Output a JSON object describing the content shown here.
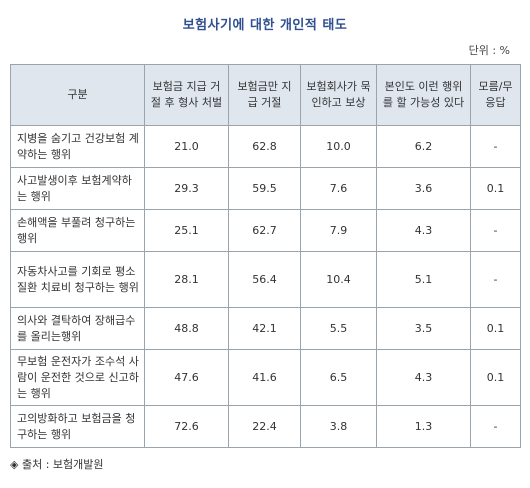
{
  "title": "보험사기에 대한 개인적 태도",
  "unit": "단위 : %",
  "table": {
    "headers": [
      "구분",
      "보험금 지급 거절 후 형사 처벌",
      "보험금만 지급 거절",
      "보험회사가 묵인하고 보상",
      "본인도 이런 행위를 할 가능성 있다",
      "모름/무응답"
    ],
    "rows": [
      {
        "label": "지병을 숨기고 건강보험 계약하는 행위",
        "values": [
          "21.0",
          "62.8",
          "10.0",
          "6.2",
          "-"
        ]
      },
      {
        "label": "사고발생이후 보험계약하는 행위",
        "values": [
          "29.3",
          "59.5",
          "7.6",
          "3.6",
          "0.1"
        ]
      },
      {
        "label": "손해액을 부풀려 청구하는 행위",
        "values": [
          "25.1",
          "62.7",
          "7.9",
          "4.3",
          "-"
        ]
      },
      {
        "label": "자동차사고를 기회로 평소 질환 치료비 청구하는 행위",
        "values": [
          "28.1",
          "56.4",
          "10.4",
          "5.1",
          "-"
        ]
      },
      {
        "label": "의사와 결탁하여 장해급수를 올리는행위",
        "values": [
          "48.8",
          "42.1",
          "5.5",
          "3.5",
          "0.1"
        ]
      },
      {
        "label": "무보험 운전자가 조수석 사람이 운전한 것으로 신고하는 행위",
        "values": [
          "47.6",
          "41.6",
          "6.5",
          "4.3",
          "0.1"
        ]
      },
      {
        "label": "고의방화하고 보험금을 청구하는 행위",
        "values": [
          "72.6",
          "22.4",
          "3.8",
          "1.3",
          "-"
        ]
      }
    ]
  },
  "source": "◈ 출처 : 보험개발원"
}
